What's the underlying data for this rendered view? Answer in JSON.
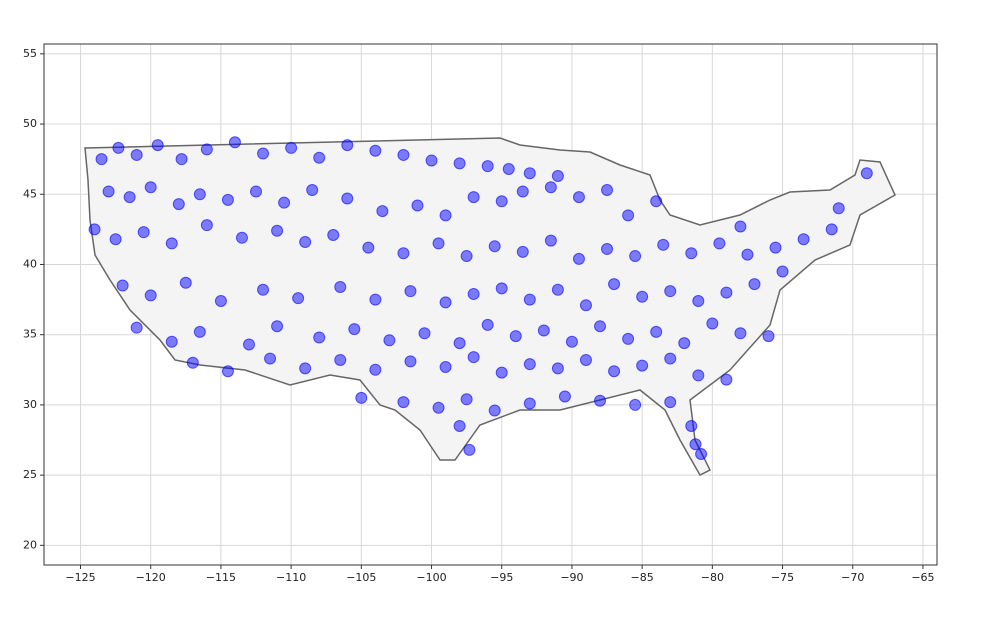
{
  "chart_data": {
    "type": "scatter",
    "x": [
      -123.5,
      -122.3,
      -121,
      -119.5,
      -117.8,
      -116,
      -114,
      -112,
      -110,
      -108,
      -106,
      -104,
      -102,
      -100,
      -98,
      -96,
      -94.5,
      -93,
      -91,
      -123,
      -121.5,
      -120,
      -118,
      -116.5,
      -114.5,
      -112.5,
      -110.5,
      -108.5,
      -106,
      -103.5,
      -101,
      -99,
      -97,
      -95,
      -93.5,
      -91.5,
      -89.5,
      -87.5,
      -124,
      -122.5,
      -120.5,
      -118.5,
      -116,
      -113.5,
      -111,
      -109,
      -107,
      -104.5,
      -102,
      -99.5,
      -97.5,
      -95.5,
      -93.5,
      -91.5,
      -89.5,
      -87.5,
      -85.5,
      -83.5,
      -81.5,
      -79.5,
      -77.5,
      -75.5,
      -73.5,
      -71.5,
      -122,
      -120,
      -117.5,
      -115,
      -112,
      -109.5,
      -106.5,
      -104,
      -101.5,
      -99,
      -97,
      -95,
      -93,
      -91,
      -89,
      -87,
      -85,
      -83,
      -81,
      -79,
      -77,
      -75,
      -121,
      -118.5,
      -116.5,
      -113,
      -111,
      -108,
      -105.5,
      -103,
      -100.5,
      -98,
      -96,
      -94,
      -92,
      -90,
      -88,
      -86,
      -84,
      -82,
      -80,
      -78,
      -76,
      -117,
      -114.5,
      -111.5,
      -109,
      -106.5,
      -104,
      -101.5,
      -99,
      -97,
      -95,
      -93,
      -91,
      -89,
      -87,
      -85,
      -83,
      -81,
      -79,
      -105,
      -102,
      -99.5,
      -97.5,
      -95.5,
      -93,
      -90.5,
      -88,
      -85.5,
      -83,
      -81.5,
      -80.8,
      -81.2,
      -98,
      -97.3,
      -69,
      -71,
      -86,
      -84,
      -78
    ],
    "y": [
      47.5,
      48.3,
      47.8,
      48.5,
      47.5,
      48.2,
      48.7,
      47.9,
      48.3,
      47.6,
      48.5,
      48.1,
      47.8,
      47.4,
      47.2,
      47,
      46.8,
      46.5,
      46.3,
      45.2,
      44.8,
      45.5,
      44.3,
      45,
      44.6,
      45.2,
      44.4,
      45.3,
      44.7,
      43.8,
      44.2,
      43.5,
      44.8,
      44.5,
      45.2,
      45.5,
      44.8,
      45.3,
      42.5,
      41.8,
      42.3,
      41.5,
      42.8,
      41.9,
      42.4,
      41.6,
      42.1,
      41.2,
      40.8,
      41.5,
      40.6,
      41.3,
      40.9,
      41.7,
      40.4,
      41.1,
      40.6,
      41.4,
      40.8,
      41.5,
      40.7,
      41.2,
      41.8,
      42.5,
      38.5,
      37.8,
      38.7,
      37.4,
      38.2,
      37.6,
      38.4,
      37.5,
      38.1,
      37.3,
      37.9,
      38.3,
      37.5,
      38.2,
      37.1,
      38.6,
      37.7,
      38.1,
      37.4,
      38,
      38.6,
      39.5,
      35.5,
      34.5,
      35.2,
      34.3,
      35.6,
      34.8,
      35.4,
      34.6,
      35.1,
      34.4,
      35.7,
      34.9,
      35.3,
      34.5,
      35.6,
      34.7,
      35.2,
      34.4,
      35.8,
      35.1,
      34.9,
      33,
      32.4,
      33.3,
      32.6,
      33.2,
      32.5,
      33.1,
      32.7,
      33.4,
      32.3,
      32.9,
      32.6,
      33.2,
      32.4,
      32.8,
      33.3,
      32.1,
      31.8,
      30.5,
      30.2,
      29.8,
      30.4,
      29.6,
      30.1,
      30.6,
      30.3,
      30,
      30.2,
      28.5,
      26.5,
      27.2,
      28.5,
      26.8,
      46.5,
      44,
      43.5,
      44.5,
      42.7
    ],
    "color": "#0000ff",
    "xlim": [
      -127.6,
      -64.0
    ],
    "ylim": [
      18.6,
      55.7
    ],
    "xticks": [
      {
        "value": -125,
        "label": "−125"
      },
      {
        "value": -120,
        "label": "−120"
      },
      {
        "value": -115,
        "label": "−115"
      },
      {
        "value": -110,
        "label": "−110"
      },
      {
        "value": -105,
        "label": "−105"
      },
      {
        "value": -100,
        "label": "−100"
      },
      {
        "value": -95,
        "label": "−95"
      },
      {
        "value": -90,
        "label": "−90"
      },
      {
        "value": -85,
        "label": "−85"
      },
      {
        "value": -80,
        "label": "−80"
      },
      {
        "value": -75,
        "label": "−75"
      },
      {
        "value": -70,
        "label": "−70"
      },
      {
        "value": -65,
        "label": "−65"
      }
    ],
    "yticks": [
      20,
      25,
      30,
      35,
      40,
      45,
      50,
      55
    ],
    "grid": true
  }
}
